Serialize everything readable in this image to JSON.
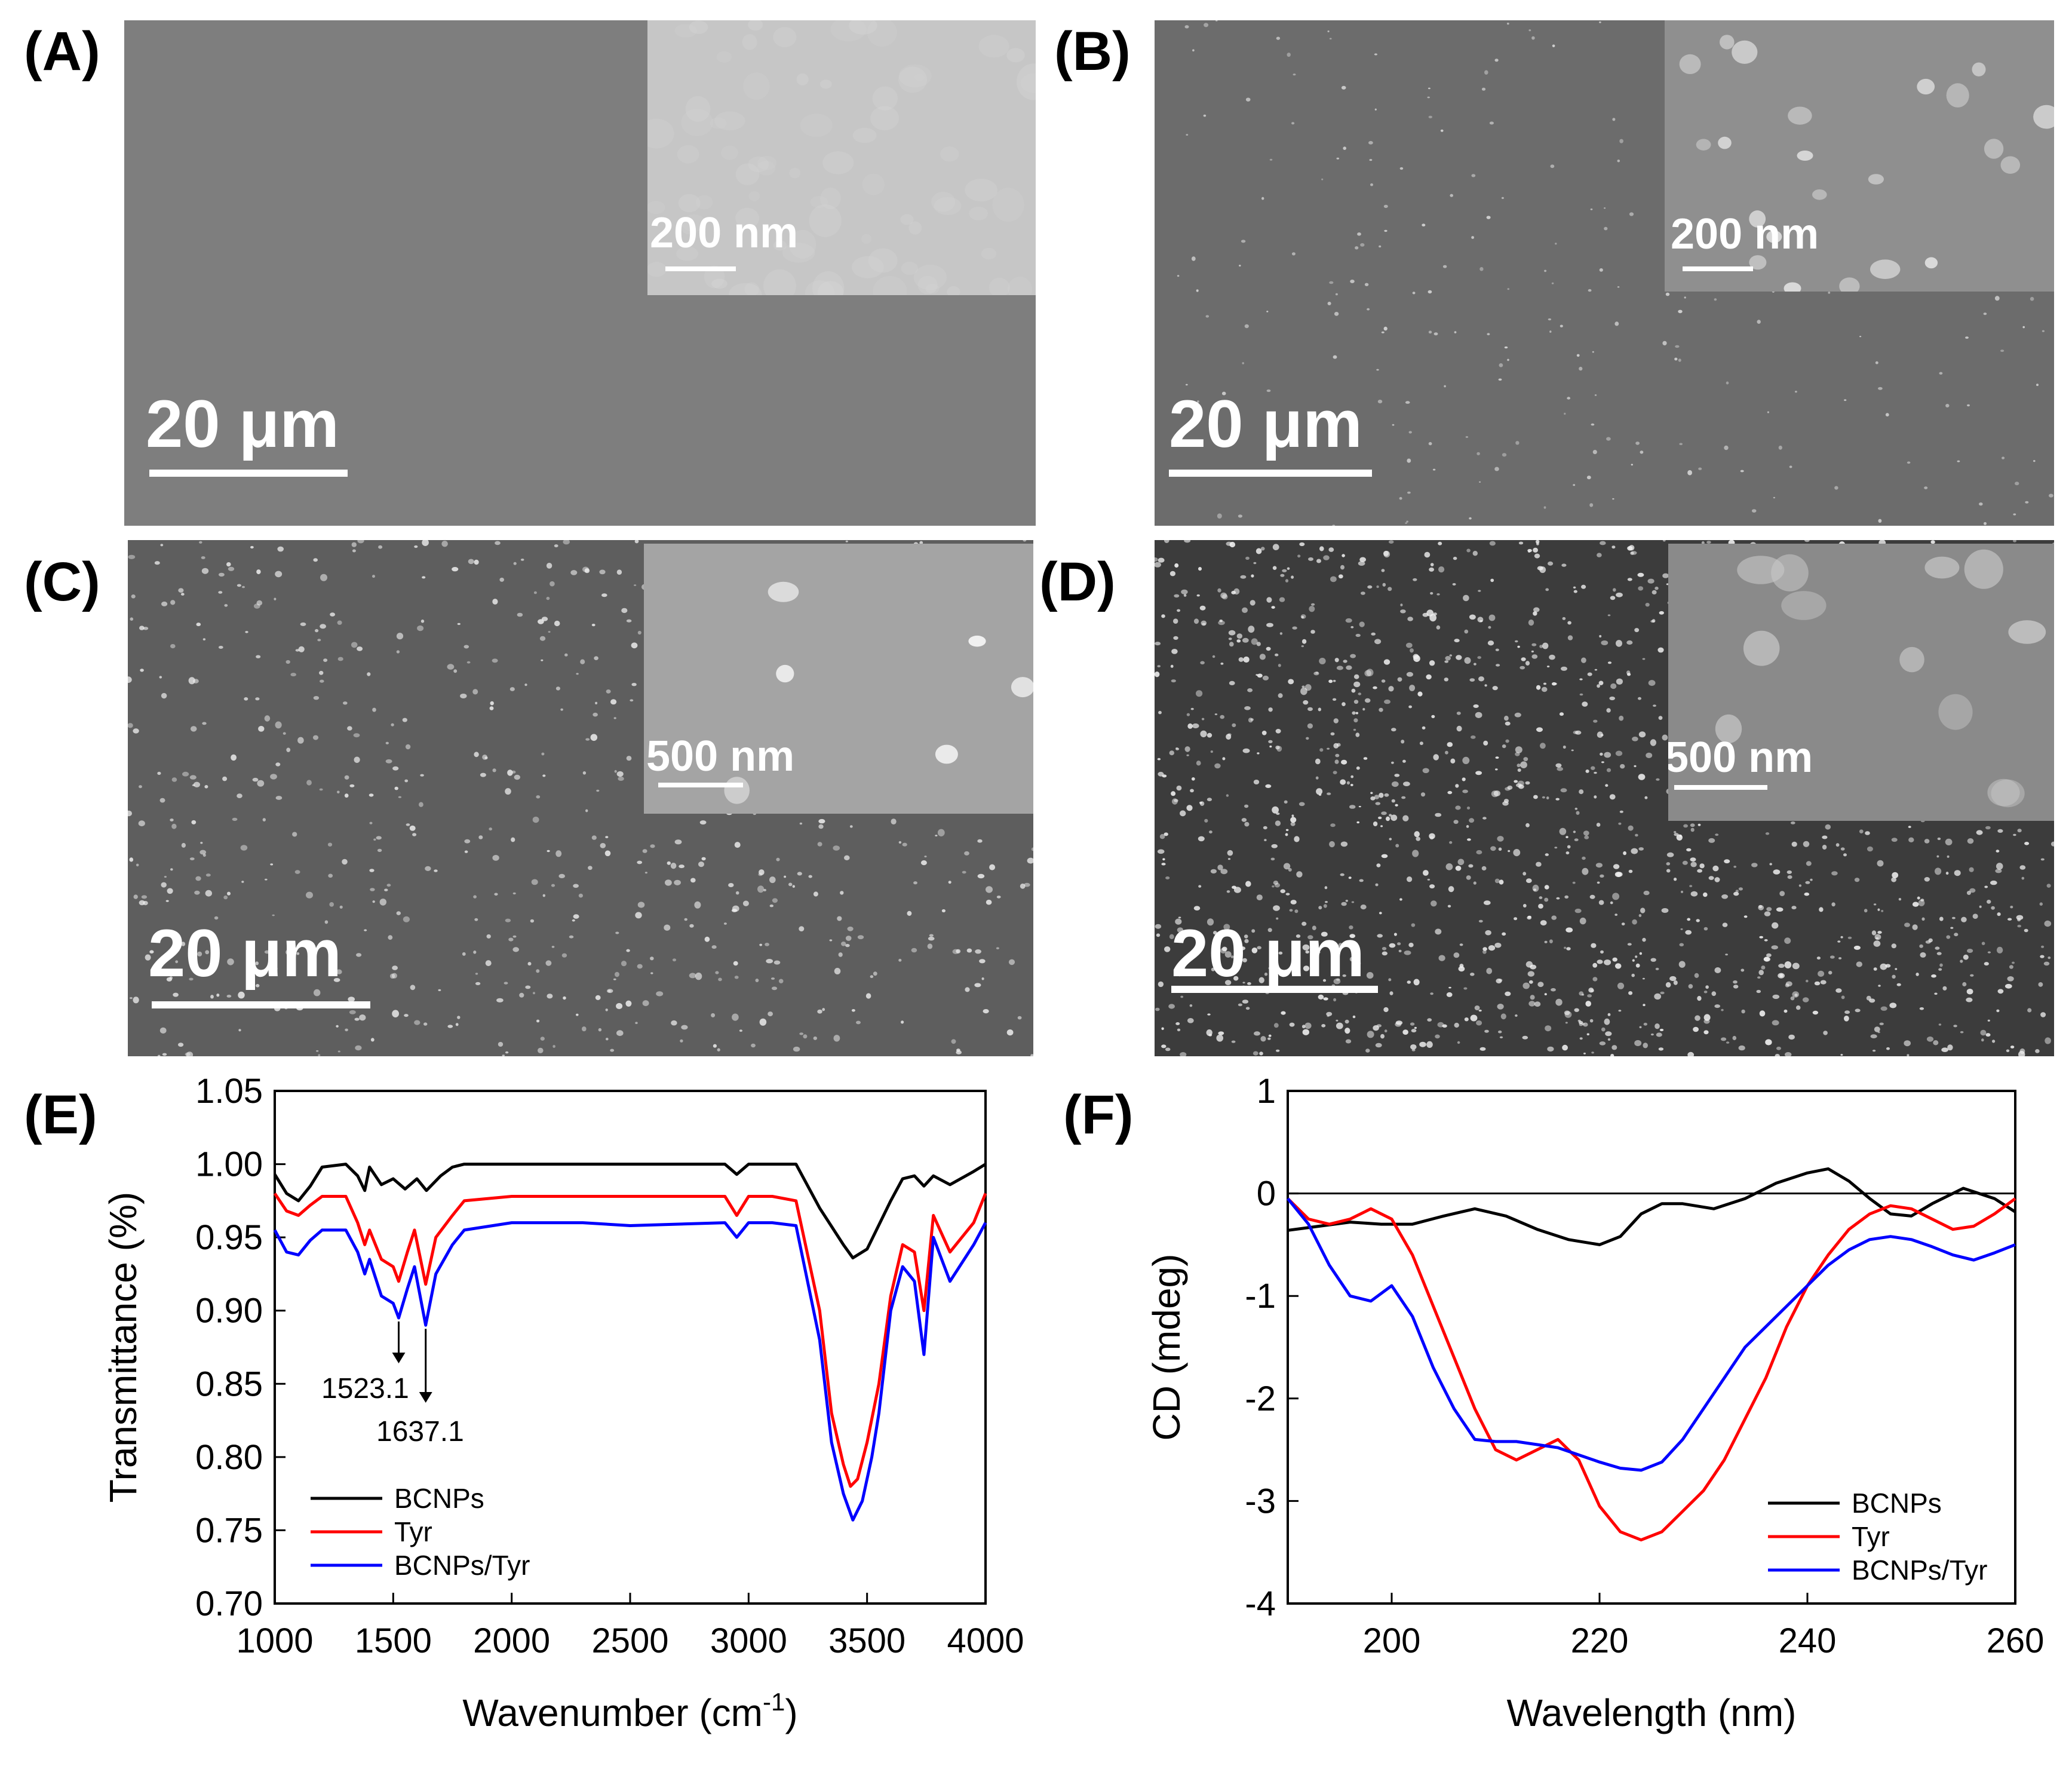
{
  "panels": {
    "A": {
      "label": "(A)",
      "scale_main": "20 μm",
      "scale_inset": "200 nm"
    },
    "B": {
      "label": "(B)",
      "scale_main": "20 μm",
      "scale_inset": "200 nm"
    },
    "C": {
      "label": "(C)",
      "scale_main": "20 μm",
      "scale_inset": "500 nm"
    },
    "D": {
      "label": "(D)",
      "scale_main": "20 μm",
      "scale_inset": "500 nm"
    },
    "E": {
      "label": "(E)"
    },
    "F": {
      "label": "(F)"
    }
  },
  "colors": {
    "BCNPs": "#000000",
    "Tyr": "#ff0000",
    "BCNPs/Tyr": "#0000ff"
  },
  "chart_data": [
    {
      "id": "E",
      "type": "line",
      "xlabel": "Wavenumber (cm",
      "xlabel_sup": "-1",
      "xlabel_end": ")",
      "ylabel": "Transmittance (%)",
      "xlim": [
        1000,
        4000
      ],
      "ylim": [
        0.7,
        1.05
      ],
      "xticks": [
        1000,
        1500,
        2000,
        2500,
        3000,
        3500,
        4000
      ],
      "xtick_labels": [
        "1000",
        "1500",
        "2000",
        "2500",
        "3000",
        "3500",
        "4000"
      ],
      "yticks": [
        0.7,
        0.75,
        0.8,
        0.85,
        0.9,
        0.95,
        1.0,
        1.05
      ],
      "ytick_labels": [
        "0.70",
        "0.75",
        "0.80",
        "0.85",
        "0.90",
        "0.95",
        "1.00",
        "1.05"
      ],
      "annotations": [
        {
          "text": "1523.1",
          "x": 1523.1,
          "y": 0.895
        },
        {
          "text": "1637.1",
          "x": 1637.1,
          "y": 0.89
        }
      ],
      "legend": "bottom-left",
      "series": [
        {
          "name": "BCNPs",
          "x": [
            1000,
            1050,
            1100,
            1150,
            1200,
            1300,
            1350,
            1380,
            1400,
            1450,
            1500,
            1550,
            1600,
            1640,
            1700,
            1750,
            1800,
            2000,
            2300,
            2500,
            2900,
            2950,
            3000,
            3200,
            3300,
            3400,
            3440,
            3500,
            3600,
            3650,
            3700,
            3740,
            3780,
            3850,
            3950,
            4000
          ],
          "values": [
            0.993,
            0.98,
            0.975,
            0.985,
            0.998,
            1.0,
            0.992,
            0.982,
            0.998,
            0.986,
            0.99,
            0.983,
            0.99,
            0.982,
            0.992,
            0.998,
            1.0,
            1.0,
            1.0,
            1.0,
            1.0,
            0.993,
            1.0,
            1.0,
            0.97,
            0.945,
            0.936,
            0.942,
            0.975,
            0.99,
            0.992,
            0.985,
            0.992,
            0.986,
            0.995,
            1.0
          ]
        },
        {
          "name": "Tyr",
          "x": [
            1000,
            1050,
            1100,
            1150,
            1200,
            1300,
            1350,
            1380,
            1400,
            1450,
            1500,
            1523,
            1560,
            1590,
            1637,
            1680,
            1750,
            1800,
            2000,
            2300,
            2500,
            2900,
            2950,
            3000,
            3100,
            3200,
            3300,
            3350,
            3400,
            3430,
            3460,
            3500,
            3550,
            3600,
            3650,
            3700,
            3740,
            3780,
            3850,
            3950,
            4000
          ],
          "values": [
            0.98,
            0.968,
            0.965,
            0.972,
            0.978,
            0.978,
            0.96,
            0.945,
            0.955,
            0.935,
            0.93,
            0.92,
            0.94,
            0.955,
            0.918,
            0.95,
            0.965,
            0.975,
            0.978,
            0.978,
            0.978,
            0.978,
            0.965,
            0.978,
            0.978,
            0.975,
            0.9,
            0.83,
            0.795,
            0.78,
            0.785,
            0.81,
            0.85,
            0.91,
            0.945,
            0.94,
            0.9,
            0.965,
            0.94,
            0.96,
            0.98
          ]
        },
        {
          "name": "BCNPs/Tyr",
          "x": [
            1000,
            1050,
            1100,
            1150,
            1200,
            1300,
            1350,
            1380,
            1400,
            1450,
            1500,
            1523,
            1560,
            1590,
            1637,
            1680,
            1750,
            1800,
            2000,
            2300,
            2500,
            2900,
            2950,
            3000,
            3100,
            3200,
            3300,
            3350,
            3400,
            3440,
            3480,
            3520,
            3550,
            3600,
            3650,
            3700,
            3740,
            3780,
            3850,
            3950,
            4000
          ],
          "values": [
            0.955,
            0.94,
            0.938,
            0.948,
            0.955,
            0.955,
            0.94,
            0.925,
            0.935,
            0.91,
            0.905,
            0.895,
            0.915,
            0.93,
            0.89,
            0.925,
            0.945,
            0.955,
            0.96,
            0.96,
            0.958,
            0.96,
            0.95,
            0.96,
            0.96,
            0.958,
            0.88,
            0.81,
            0.775,
            0.757,
            0.77,
            0.8,
            0.83,
            0.9,
            0.93,
            0.92,
            0.87,
            0.95,
            0.92,
            0.945,
            0.96
          ]
        }
      ]
    },
    {
      "id": "F",
      "type": "line",
      "xlabel": "Wavelength (nm)",
      "ylabel": "CD (mdeg)",
      "xlim": [
        190,
        260
      ],
      "ylim": [
        -4,
        1
      ],
      "xticks": [
        200,
        220,
        240,
        260
      ],
      "xtick_labels": [
        "200",
        "220",
        "240",
        "260"
      ],
      "yticks": [
        -4,
        -3,
        -2,
        -1,
        0,
        1
      ],
      "ytick_labels": [
        "-4",
        "-3",
        "-2",
        "-1",
        "0",
        "1"
      ],
      "legend": "bottom-right",
      "series": [
        {
          "name": "BCNPs",
          "x": [
            190,
            193,
            196,
            199,
            202,
            205,
            208,
            211,
            214,
            217,
            220,
            222,
            224,
            226,
            228,
            231,
            234,
            237,
            240,
            242,
            244,
            246,
            248,
            250,
            252,
            255,
            258,
            260
          ],
          "values": [
            -0.36,
            -0.32,
            -0.28,
            -0.3,
            -0.3,
            -0.22,
            -0.15,
            -0.22,
            -0.35,
            -0.45,
            -0.5,
            -0.42,
            -0.2,
            -0.1,
            -0.1,
            -0.15,
            -0.05,
            0.1,
            0.2,
            0.24,
            0.12,
            -0.05,
            -0.2,
            -0.22,
            -0.1,
            0.05,
            -0.05,
            -0.18
          ]
        },
        {
          "name": "Tyr",
          "x": [
            190,
            192,
            194,
            196,
            198,
            200,
            202,
            204,
            206,
            208,
            210,
            212,
            214,
            216,
            218,
            220,
            222,
            224,
            226,
            228,
            230,
            232,
            234,
            236,
            238,
            240,
            242,
            244,
            246,
            248,
            250,
            252,
            254,
            256,
            258,
            260
          ],
          "values": [
            -0.05,
            -0.25,
            -0.3,
            -0.25,
            -0.15,
            -0.25,
            -0.6,
            -1.1,
            -1.6,
            -2.1,
            -2.5,
            -2.6,
            -2.5,
            -2.4,
            -2.6,
            -3.05,
            -3.3,
            -3.38,
            -3.3,
            -3.1,
            -2.9,
            -2.6,
            -2.2,
            -1.8,
            -1.3,
            -0.9,
            -0.6,
            -0.35,
            -0.2,
            -0.12,
            -0.15,
            -0.25,
            -0.35,
            -0.32,
            -0.2,
            -0.05
          ]
        },
        {
          "name": "BCNPs/Tyr",
          "x": [
            190,
            192,
            194,
            196,
            198,
            200,
            202,
            204,
            206,
            208,
            210,
            212,
            214,
            216,
            218,
            220,
            222,
            224,
            226,
            228,
            230,
            232,
            234,
            236,
            238,
            240,
            242,
            244,
            246,
            248,
            250,
            252,
            254,
            256,
            258,
            260
          ],
          "values": [
            -0.05,
            -0.3,
            -0.7,
            -1.0,
            -1.05,
            -0.9,
            -1.2,
            -1.7,
            -2.1,
            -2.4,
            -2.42,
            -2.42,
            -2.45,
            -2.48,
            -2.55,
            -2.62,
            -2.68,
            -2.7,
            -2.62,
            -2.4,
            -2.1,
            -1.8,
            -1.5,
            -1.3,
            -1.1,
            -0.9,
            -0.7,
            -0.55,
            -0.45,
            -0.42,
            -0.45,
            -0.52,
            -0.6,
            -0.65,
            -0.58,
            -0.5
          ]
        }
      ]
    }
  ]
}
